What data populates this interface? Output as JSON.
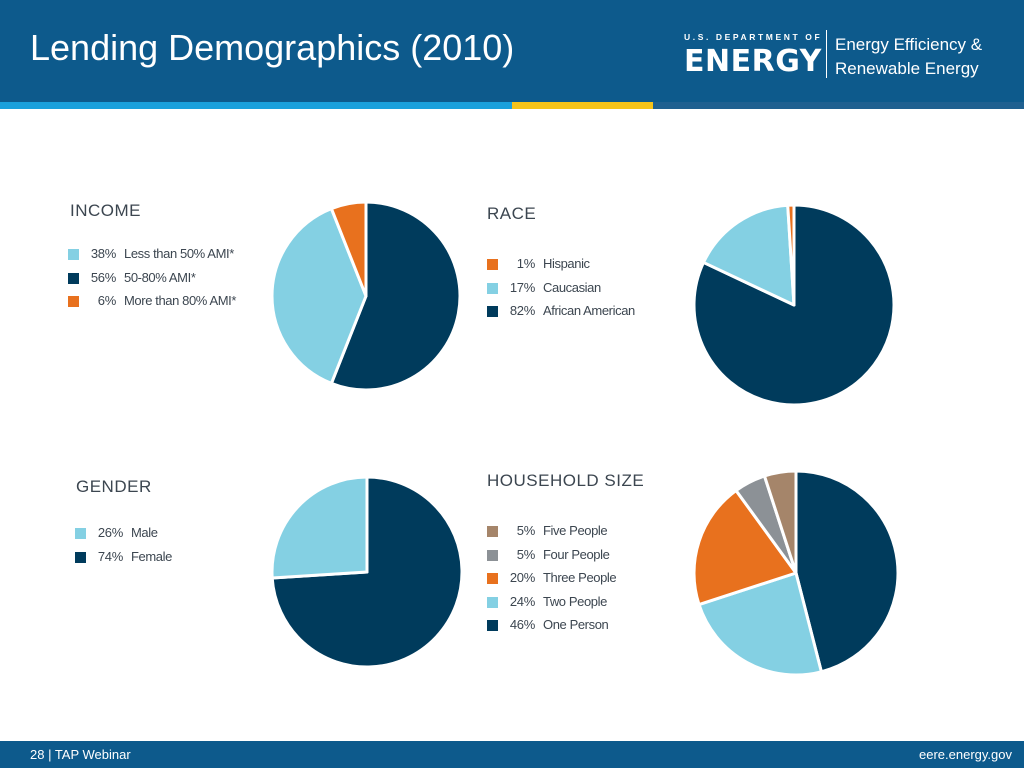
{
  "header": {
    "title": "Lending Demographics (2010)",
    "logo_small": "U.S. DEPARTMENT OF",
    "logo_big": "ENERGY",
    "eere_line1": "Energy Efficiency &",
    "eere_line2": "Renewable Energy"
  },
  "footer": {
    "left": "28 | TAP Webinar",
    "right": "eere.energy.gov"
  },
  "colors": {
    "header_bg": "#0d5a8c",
    "dark_navy": "#003b5c",
    "light_blue": "#84d0e3",
    "orange": "#e8711e",
    "gray": "#8c9196",
    "tan": "#a5856a"
  },
  "chart_data": [
    {
      "type": "pie",
      "title": "INCOME",
      "slices": [
        {
          "pct": "38%",
          "label": "Less than 50% AMI*",
          "value": 38,
          "color": "#84d0e3"
        },
        {
          "pct": "56%",
          "label": "50-80% AMI*",
          "value": 56,
          "color": "#003b5c"
        },
        {
          "pct": "6%",
          "label": "More than 80% AMI*",
          "value": 6,
          "color": "#e8711e"
        }
      ]
    },
    {
      "type": "pie",
      "title": "RACE",
      "slices": [
        {
          "pct": "1%",
          "label": "Hispanic",
          "value": 1,
          "color": "#e8711e"
        },
        {
          "pct": "17%",
          "label": "Caucasian",
          "value": 17,
          "color": "#84d0e3"
        },
        {
          "pct": "82%",
          "label": "African American",
          "value": 82,
          "color": "#003b5c"
        }
      ]
    },
    {
      "type": "pie",
      "title": "GENDER",
      "slices": [
        {
          "pct": "26%",
          "label": "Male",
          "value": 26,
          "color": "#84d0e3"
        },
        {
          "pct": "74%",
          "label": "Female",
          "value": 74,
          "color": "#003b5c"
        }
      ]
    },
    {
      "type": "pie",
      "title": "HOUSEHOLD SIZE",
      "slices": [
        {
          "pct": "5%",
          "label": "Five People",
          "value": 5,
          "color": "#a5856a"
        },
        {
          "pct": "5%",
          "label": "Four People",
          "value": 5,
          "color": "#8c9196"
        },
        {
          "pct": "20%",
          "label": "Three People",
          "value": 20,
          "color": "#e8711e"
        },
        {
          "pct": "24%",
          "label": "Two People",
          "value": 24,
          "color": "#84d0e3"
        },
        {
          "pct": "46%",
          "label": "One Person",
          "value": 46,
          "color": "#003b5c"
        }
      ]
    }
  ]
}
